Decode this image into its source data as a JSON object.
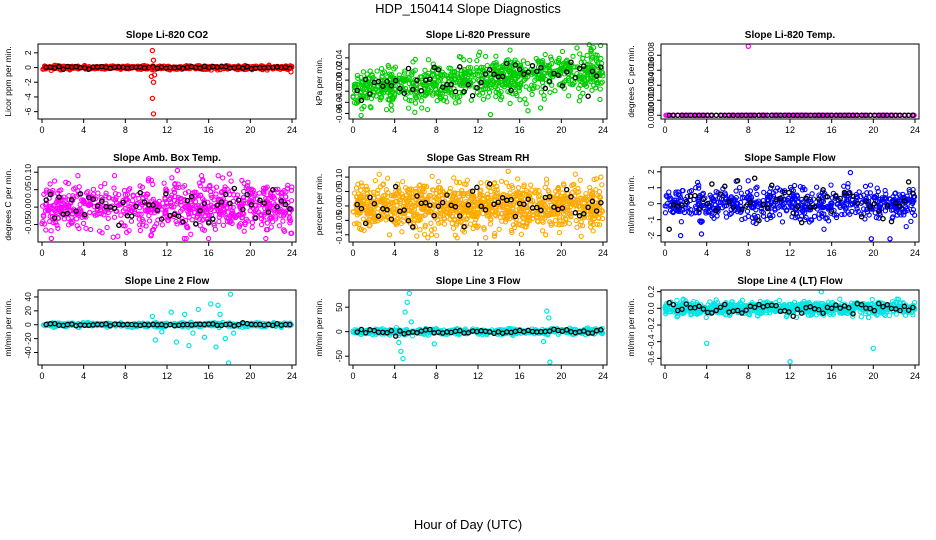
{
  "title": "HDP_150414  Slope Diagnostics",
  "xlabel": "Hour of Day (UTC)",
  "chart_data": [
    {
      "type": "scatter",
      "title": "Slope Li-820 CO2",
      "ylabel": "Licor ppm per min.",
      "color": "#ff0000",
      "xlim": [
        0,
        24
      ],
      "xticks": [
        0,
        4,
        8,
        12,
        16,
        20,
        24
      ],
      "ylim": [
        -7,
        3.2
      ],
      "yticks": [
        2,
        0,
        -2,
        -4,
        -6
      ],
      "ytick_labels": [
        "2",
        "0",
        "-2",
        "-4",
        "-6"
      ],
      "noise_sd": 0.12,
      "noise_max": 0.4,
      "density": 55,
      "black_sd": 0.1,
      "outliers": [
        {
          "x": 10.6,
          "y": 2.3
        },
        {
          "x": 10.7,
          "y": 1.0
        },
        {
          "x": 10.6,
          "y": -0.3
        },
        {
          "x": 10.5,
          "y": -1.2
        },
        {
          "x": 10.7,
          "y": -2.0
        },
        {
          "x": 10.8,
          "y": -1.0
        },
        {
          "x": 10.6,
          "y": -4.2
        },
        {
          "x": 10.7,
          "y": -6.3
        },
        {
          "x": 23.9,
          "y": -0.6
        }
      ]
    },
    {
      "type": "scatter",
      "title": "Slope Li-820 Pressure",
      "ylabel": "kPa per min.",
      "color": "#00cc00",
      "xlim": [
        0,
        24
      ],
      "xticks": [
        0,
        4,
        8,
        12,
        16,
        20,
        24
      ],
      "ylim": [
        -0.07,
        0.065
      ],
      "yticks": [
        0.04,
        0.02,
        0.0,
        -0.02,
        -0.04,
        -0.06
      ],
      "ytick_labels": [
        "0.04",
        "0.02",
        "0.00",
        "-0.02",
        "-0.04",
        "-0.06"
      ],
      "noise_sd": 0.018,
      "noise_max": 0.05,
      "density": 70,
      "black_sd": 0.014,
      "trend": 0.0013,
      "outliers": [
        {
          "x": 13.2,
          "y": -0.062
        },
        {
          "x": 16.8,
          "y": -0.055
        },
        {
          "x": 18.0,
          "y": -0.05
        },
        {
          "x": 21.5,
          "y": 0.058
        }
      ]
    },
    {
      "type": "scatter",
      "title": "Slope Li-820 Temp.",
      "ylabel": "degrees C per min.",
      "color": "#ff00ff",
      "xlim": [
        0,
        24
      ],
      "xticks": [
        0,
        4,
        8,
        12,
        16,
        20,
        24
      ],
      "ylim": [
        -5e-05,
        0.00095
      ],
      "yticks": [
        0.0008,
        0.0006,
        0.0004,
        0.0002,
        0.0
      ],
      "ytick_labels": [
        "0.0008",
        "0.0006",
        "0.0004",
        "0.0002",
        "0.0000"
      ],
      "noise_sd": 0.0,
      "noise_max": 0.0,
      "density": 14,
      "black_sd": 0.0,
      "outliers": [
        {
          "x": 8.0,
          "y": 0.00092
        }
      ]
    },
    {
      "type": "scatter",
      "title": "Slope Amb. Box Temp.",
      "ylabel": "degrees C per min.",
      "color": "#ff00ff",
      "xlim": [
        0,
        24
      ],
      "xticks": [
        0,
        4,
        8,
        12,
        16,
        20,
        24
      ],
      "ylim": [
        -0.1,
        0.115
      ],
      "yticks": [
        0.1,
        0.05,
        0.0,
        -0.05
      ],
      "ytick_labels": [
        "0.10",
        "0.05",
        "0.00",
        "-0.05"
      ],
      "noise_sd": 0.035,
      "noise_max": 0.09,
      "density": 60,
      "black_sd": 0.03,
      "outliers": [
        {
          "x": 0.9,
          "y": -0.09
        },
        {
          "x": 13.0,
          "y": 0.105
        },
        {
          "x": 18.0,
          "y": 0.095
        },
        {
          "x": 23.9,
          "y": -0.075
        }
      ]
    },
    {
      "type": "scatter",
      "title": "Slope Gas Stream RH",
      "ylabel": "percent per min.",
      "color": "#ffaa00",
      "xlim": [
        0,
        24
      ],
      "xticks": [
        0,
        4,
        8,
        12,
        16,
        20,
        24
      ],
      "ylim": [
        -0.125,
        0.135
      ],
      "yticks": [
        0.1,
        0.05,
        0.0,
        -0.05,
        -0.1
      ],
      "ytick_labels": [
        "0.10",
        "0.05",
        "0.00",
        "-0.05",
        "-0.10"
      ],
      "noise_sd": 0.04,
      "noise_max": 0.11,
      "density": 90,
      "black_sd": 0.03,
      "outliers": [
        {
          "x": 3.5,
          "y": -0.1
        },
        {
          "x": 14.9,
          "y": 0.12
        },
        {
          "x": 23.8,
          "y": 0.1
        },
        {
          "x": 18.5,
          "y": -0.1
        }
      ]
    },
    {
      "type": "scatter",
      "title": "Slope Sample Flow",
      "ylabel": "ml/min per min.",
      "color": "#0000ff",
      "xlim": [
        0,
        24
      ],
      "xticks": [
        0,
        4,
        8,
        12,
        16,
        20,
        24
      ],
      "ylim": [
        -2.4,
        2.3
      ],
      "yticks": [
        2,
        1,
        0,
        -1,
        -2
      ],
      "ytick_labels": [
        "2",
        "1",
        "0",
        "-1",
        "-2"
      ],
      "noise_sd": 0.5,
      "noise_max": 1.6,
      "density": 50,
      "black_sd": 0.7,
      "outliers": [
        {
          "x": 1.5,
          "y": -2.0
        },
        {
          "x": 3.5,
          "y": -1.9
        },
        {
          "x": 17.8,
          "y": 1.95
        },
        {
          "x": 19.8,
          "y": -2.2
        },
        {
          "x": 21.6,
          "y": -2.2
        }
      ]
    },
    {
      "type": "scatter",
      "title": "Slope Line 2 Flow",
      "ylabel": "ml/min per min.",
      "color": "#00e5e5",
      "xlim": [
        0,
        24
      ],
      "xticks": [
        0,
        4,
        8,
        12,
        16,
        20,
        24
      ],
      "ylim": [
        -58,
        50
      ],
      "yticks": [
        40,
        20,
        0,
        -20,
        -40
      ],
      "ytick_labels": [
        "40",
        "20",
        "0",
        "-20",
        "-40"
      ],
      "noise_sd": 1.5,
      "noise_max": 4,
      "density": 40,
      "black_sd": 0.8,
      "outliers": [
        {
          "x": 10.6,
          "y": 12
        },
        {
          "x": 11.5,
          "y": -10
        },
        {
          "x": 12.4,
          "y": 18
        },
        {
          "x": 12.9,
          "y": -25
        },
        {
          "x": 13.7,
          "y": 15
        },
        {
          "x": 14.5,
          "y": -12
        },
        {
          "x": 15.0,
          "y": 22
        },
        {
          "x": 15.6,
          "y": -18
        },
        {
          "x": 16.2,
          "y": 30
        },
        {
          "x": 16.7,
          "y": -32
        },
        {
          "x": 17.1,
          "y": 15
        },
        {
          "x": 17.6,
          "y": -20
        },
        {
          "x": 18.1,
          "y": 44
        },
        {
          "x": 18.4,
          "y": -12
        },
        {
          "x": 17.9,
          "y": -55
        },
        {
          "x": 10.9,
          "y": -22
        },
        {
          "x": 14.1,
          "y": -30
        },
        {
          "x": 16.9,
          "y": 28
        }
      ]
    },
    {
      "type": "scatter",
      "title": "Slope Line 3 Flow",
      "ylabel": "ml/min per min.",
      "color": "#00e5e5",
      "xlim": [
        0,
        24
      ],
      "xticks": [
        0,
        4,
        8,
        12,
        16,
        20,
        24
      ],
      "ylim": [
        -68,
        85
      ],
      "yticks": [
        50,
        0,
        -50
      ],
      "ytick_labels": [
        "50",
        "0",
        "-50"
      ],
      "noise_sd": 3,
      "noise_max": 9,
      "density": 40,
      "black_sd": 2.5,
      "outliers": [
        {
          "x": 4.4,
          "y": -22
        },
        {
          "x": 4.6,
          "y": -40
        },
        {
          "x": 4.8,
          "y": -55
        },
        {
          "x": 5.0,
          "y": 40
        },
        {
          "x": 5.2,
          "y": 60
        },
        {
          "x": 5.4,
          "y": 78
        },
        {
          "x": 5.6,
          "y": 20
        },
        {
          "x": 7.8,
          "y": -25
        },
        {
          "x": 18.6,
          "y": 42
        },
        {
          "x": 18.8,
          "y": 28
        },
        {
          "x": 18.9,
          "y": -62
        },
        {
          "x": 18.3,
          "y": -20
        }
      ]
    },
    {
      "type": "scatter",
      "title": "Slope Line 4 (LT) Flow",
      "ylabel": "ml/min per min.",
      "color": "#00e5e5",
      "xlim": [
        0,
        24
      ],
      "xticks": [
        0,
        4,
        8,
        12,
        16,
        20,
        24
      ],
      "ylim": [
        -0.68,
        0.22
      ],
      "yticks": [
        0.2,
        0.0,
        -0.2,
        -0.4,
        -0.6
      ],
      "ytick_labels": [
        "0.2",
        "0.0",
        "-0.2",
        "-0.4",
        "-0.6"
      ],
      "noise_sd": 0.04,
      "noise_max": 0.11,
      "density": 65,
      "black_sd": 0.035,
      "outliers": [
        {
          "x": 4.0,
          "y": -0.42
        },
        {
          "x": 12.0,
          "y": -0.64
        },
        {
          "x": 20.0,
          "y": -0.48
        },
        {
          "x": 15.0,
          "y": 0.2
        }
      ]
    }
  ]
}
